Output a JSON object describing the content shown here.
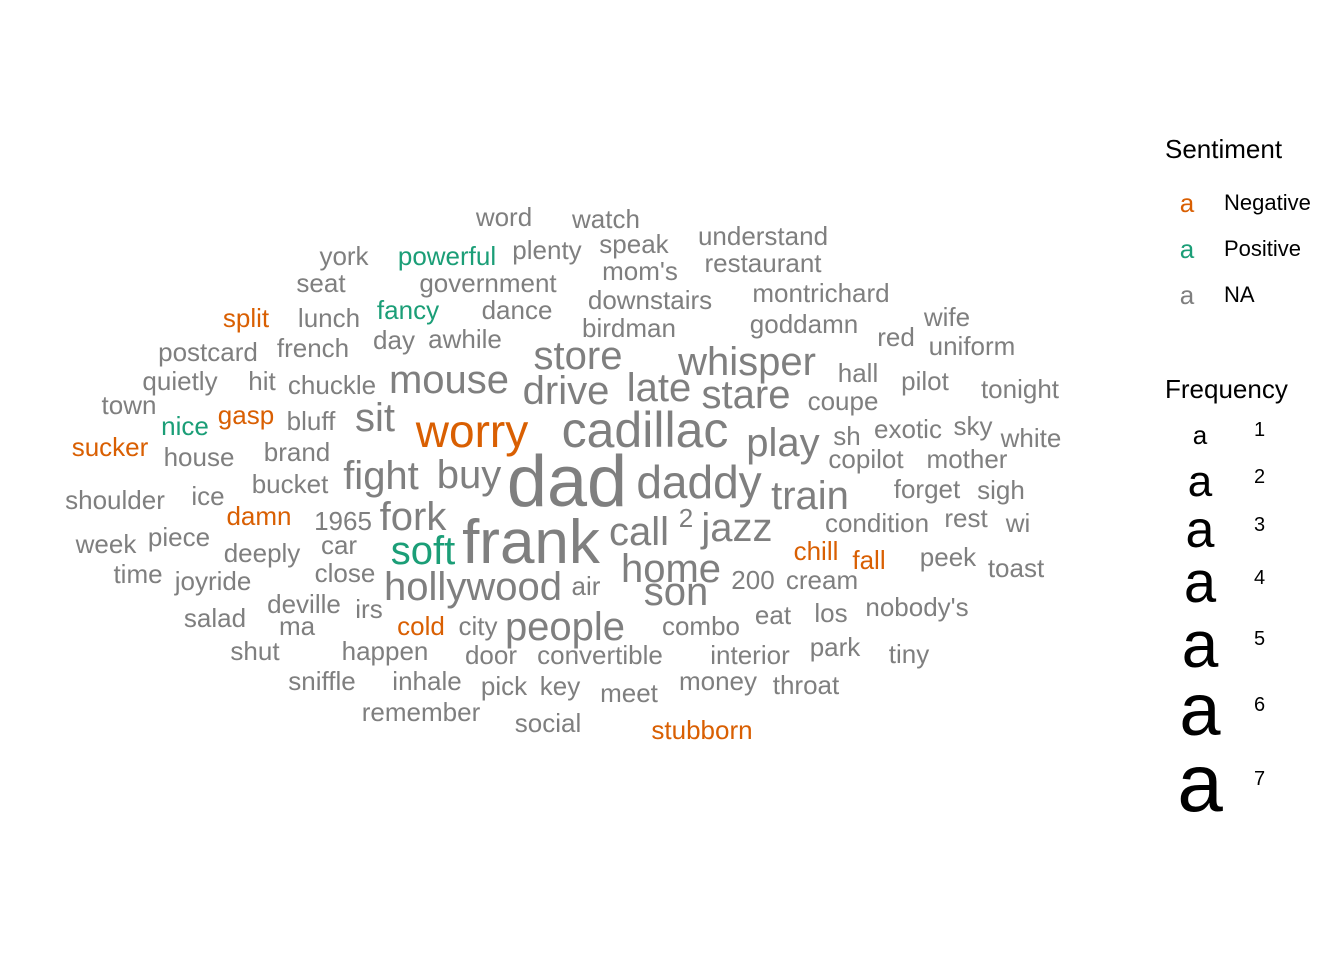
{
  "chart_data": {
    "type": "wordcloud",
    "colors": {
      "Negative": "#D95F02",
      "Positive": "#1B9E77",
      "NA": "#7F7F7F"
    },
    "words": [
      {
        "text": "dad",
        "freq": 7,
        "sentiment": "NA"
      },
      {
        "text": "frank",
        "freq": 6,
        "sentiment": "NA"
      },
      {
        "text": "cadillac",
        "freq": 5,
        "sentiment": "NA"
      },
      {
        "text": "worry",
        "freq": 4,
        "sentiment": "Negative"
      },
      {
        "text": "daddy",
        "freq": 4,
        "sentiment": "NA"
      },
      {
        "text": "store",
        "freq": 3,
        "sentiment": "NA"
      },
      {
        "text": "whisper",
        "freq": 3,
        "sentiment": "NA"
      },
      {
        "text": "mouse",
        "freq": 3,
        "sentiment": "NA"
      },
      {
        "text": "drive",
        "freq": 3,
        "sentiment": "NA"
      },
      {
        "text": "late",
        "freq": 3,
        "sentiment": "NA"
      },
      {
        "text": "stare",
        "freq": 3,
        "sentiment": "NA"
      },
      {
        "text": "sit",
        "freq": 3,
        "sentiment": "NA"
      },
      {
        "text": "play",
        "freq": 3,
        "sentiment": "NA"
      },
      {
        "text": "fight",
        "freq": 3,
        "sentiment": "NA"
      },
      {
        "text": "buy",
        "freq": 3,
        "sentiment": "NA"
      },
      {
        "text": "train",
        "freq": 3,
        "sentiment": "NA"
      },
      {
        "text": "fork",
        "freq": 3,
        "sentiment": "NA"
      },
      {
        "text": "call",
        "freq": 3,
        "sentiment": "NA"
      },
      {
        "text": "jazz",
        "freq": 3,
        "sentiment": "NA"
      },
      {
        "text": "soft",
        "freq": 3,
        "sentiment": "Positive"
      },
      {
        "text": "home",
        "freq": 3,
        "sentiment": "NA"
      },
      {
        "text": "son",
        "freq": 3,
        "sentiment": "NA"
      },
      {
        "text": "hollywood",
        "freq": 3,
        "sentiment": "NA"
      },
      {
        "text": "people",
        "freq": 3,
        "sentiment": "NA"
      },
      {
        "text": "word",
        "freq": 1,
        "sentiment": "NA"
      },
      {
        "text": "watch",
        "freq": 1,
        "sentiment": "NA"
      },
      {
        "text": "understand",
        "freq": 1,
        "sentiment": "NA"
      },
      {
        "text": "york",
        "freq": 1,
        "sentiment": "NA"
      },
      {
        "text": "powerful",
        "freq": 1,
        "sentiment": "Positive"
      },
      {
        "text": "plenty",
        "freq": 1,
        "sentiment": "NA"
      },
      {
        "text": "speak",
        "freq": 1,
        "sentiment": "NA"
      },
      {
        "text": "restaurant",
        "freq": 1,
        "sentiment": "NA"
      },
      {
        "text": "mom's",
        "freq": 1,
        "sentiment": "NA"
      },
      {
        "text": "seat",
        "freq": 1,
        "sentiment": "NA"
      },
      {
        "text": "government",
        "freq": 1,
        "sentiment": "NA"
      },
      {
        "text": "montrichard",
        "freq": 1,
        "sentiment": "NA"
      },
      {
        "text": "downstairs",
        "freq": 1,
        "sentiment": "NA"
      },
      {
        "text": "split",
        "freq": 1,
        "sentiment": "Negative"
      },
      {
        "text": "fancy",
        "freq": 1,
        "sentiment": "Positive"
      },
      {
        "text": "dance",
        "freq": 1,
        "sentiment": "NA"
      },
      {
        "text": "lunch",
        "freq": 1,
        "sentiment": "NA"
      },
      {
        "text": "wife",
        "freq": 1,
        "sentiment": "NA"
      },
      {
        "text": "goddamn",
        "freq": 1,
        "sentiment": "NA"
      },
      {
        "text": "birdman",
        "freq": 1,
        "sentiment": "NA"
      },
      {
        "text": "red",
        "freq": 1,
        "sentiment": "NA"
      },
      {
        "text": "day",
        "freq": 1,
        "sentiment": "NA"
      },
      {
        "text": "awhile",
        "freq": 1,
        "sentiment": "NA"
      },
      {
        "text": "uniform",
        "freq": 1,
        "sentiment": "NA"
      },
      {
        "text": "postcard",
        "freq": 1,
        "sentiment": "NA"
      },
      {
        "text": "french",
        "freq": 1,
        "sentiment": "NA"
      },
      {
        "text": "hall",
        "freq": 1,
        "sentiment": "NA"
      },
      {
        "text": "quietly",
        "freq": 1,
        "sentiment": "NA"
      },
      {
        "text": "hit",
        "freq": 1,
        "sentiment": "NA"
      },
      {
        "text": "chuckle",
        "freq": 1,
        "sentiment": "NA"
      },
      {
        "text": "pilot",
        "freq": 1,
        "sentiment": "NA"
      },
      {
        "text": "tonight",
        "freq": 1,
        "sentiment": "NA"
      },
      {
        "text": "coupe",
        "freq": 1,
        "sentiment": "NA"
      },
      {
        "text": "town",
        "freq": 1,
        "sentiment": "NA"
      },
      {
        "text": "gasp",
        "freq": 1,
        "sentiment": "Negative"
      },
      {
        "text": "bluff",
        "freq": 1,
        "sentiment": "NA"
      },
      {
        "text": "nice",
        "freq": 1,
        "sentiment": "Positive"
      },
      {
        "text": "exotic",
        "freq": 1,
        "sentiment": "NA"
      },
      {
        "text": "sky",
        "freq": 1,
        "sentiment": "NA"
      },
      {
        "text": "sh",
        "freq": 1,
        "sentiment": "NA"
      },
      {
        "text": "white",
        "freq": 1,
        "sentiment": "NA"
      },
      {
        "text": "sucker",
        "freq": 1,
        "sentiment": "Negative"
      },
      {
        "text": "brand",
        "freq": 1,
        "sentiment": "NA"
      },
      {
        "text": "house",
        "freq": 1,
        "sentiment": "NA"
      },
      {
        "text": "copilot",
        "freq": 1,
        "sentiment": "NA"
      },
      {
        "text": "mother",
        "freq": 1,
        "sentiment": "NA"
      },
      {
        "text": "bucket",
        "freq": 1,
        "sentiment": "NA"
      },
      {
        "text": "forget",
        "freq": 1,
        "sentiment": "NA"
      },
      {
        "text": "sigh",
        "freq": 1,
        "sentiment": "NA"
      },
      {
        "text": "shoulder",
        "freq": 1,
        "sentiment": "NA"
      },
      {
        "text": "ice",
        "freq": 1,
        "sentiment": "NA"
      },
      {
        "text": "damn",
        "freq": 1,
        "sentiment": "Negative"
      },
      {
        "text": "1965",
        "freq": 1,
        "sentiment": "NA"
      },
      {
        "text": "2",
        "freq": 1,
        "sentiment": "NA"
      },
      {
        "text": "condition",
        "freq": 1,
        "sentiment": "NA"
      },
      {
        "text": "rest",
        "freq": 1,
        "sentiment": "NA"
      },
      {
        "text": "wi",
        "freq": 1,
        "sentiment": "NA"
      },
      {
        "text": "piece",
        "freq": 1,
        "sentiment": "NA"
      },
      {
        "text": "week",
        "freq": 1,
        "sentiment": "NA"
      },
      {
        "text": "car",
        "freq": 1,
        "sentiment": "NA"
      },
      {
        "text": "deeply",
        "freq": 1,
        "sentiment": "NA"
      },
      {
        "text": "chill",
        "freq": 1,
        "sentiment": "Negative"
      },
      {
        "text": "fall",
        "freq": 1,
        "sentiment": "Negative"
      },
      {
        "text": "peek",
        "freq": 1,
        "sentiment": "NA"
      },
      {
        "text": "toast",
        "freq": 1,
        "sentiment": "NA"
      },
      {
        "text": "time",
        "freq": 1,
        "sentiment": "NA"
      },
      {
        "text": "close",
        "freq": 1,
        "sentiment": "NA"
      },
      {
        "text": "joyride",
        "freq": 1,
        "sentiment": "NA"
      },
      {
        "text": "200",
        "freq": 1,
        "sentiment": "NA"
      },
      {
        "text": "cream",
        "freq": 1,
        "sentiment": "NA"
      },
      {
        "text": "air",
        "freq": 1,
        "sentiment": "NA"
      },
      {
        "text": "deville",
        "freq": 1,
        "sentiment": "NA"
      },
      {
        "text": "irs",
        "freq": 1,
        "sentiment": "NA"
      },
      {
        "text": "nobody's",
        "freq": 1,
        "sentiment": "NA"
      },
      {
        "text": "eat",
        "freq": 1,
        "sentiment": "NA"
      },
      {
        "text": "los",
        "freq": 1,
        "sentiment": "NA"
      },
      {
        "text": "salad",
        "freq": 1,
        "sentiment": "NA"
      },
      {
        "text": "ma",
        "freq": 1,
        "sentiment": "NA"
      },
      {
        "text": "cold",
        "freq": 1,
        "sentiment": "Negative"
      },
      {
        "text": "city",
        "freq": 1,
        "sentiment": "NA"
      },
      {
        "text": "combo",
        "freq": 1,
        "sentiment": "NA"
      },
      {
        "text": "park",
        "freq": 1,
        "sentiment": "NA"
      },
      {
        "text": "shut",
        "freq": 1,
        "sentiment": "NA"
      },
      {
        "text": "happen",
        "freq": 1,
        "sentiment": "NA"
      },
      {
        "text": "door",
        "freq": 1,
        "sentiment": "NA"
      },
      {
        "text": "convertible",
        "freq": 1,
        "sentiment": "NA"
      },
      {
        "text": "interior",
        "freq": 1,
        "sentiment": "NA"
      },
      {
        "text": "tiny",
        "freq": 1,
        "sentiment": "NA"
      },
      {
        "text": "sniffle",
        "freq": 1,
        "sentiment": "NA"
      },
      {
        "text": "inhale",
        "freq": 1,
        "sentiment": "NA"
      },
      {
        "text": "pick",
        "freq": 1,
        "sentiment": "NA"
      },
      {
        "text": "key",
        "freq": 1,
        "sentiment": "NA"
      },
      {
        "text": "money",
        "freq": 1,
        "sentiment": "NA"
      },
      {
        "text": "throat",
        "freq": 1,
        "sentiment": "NA"
      },
      {
        "text": "meet",
        "freq": 1,
        "sentiment": "NA"
      },
      {
        "text": "remember",
        "freq": 1,
        "sentiment": "NA"
      },
      {
        "text": "social",
        "freq": 1,
        "sentiment": "NA"
      },
      {
        "text": "stubborn",
        "freq": 1,
        "sentiment": "Negative"
      }
    ],
    "legend": {
      "sentiment": {
        "title": "Sentiment",
        "key_glyph": "a",
        "items": [
          {
            "label": "Negative",
            "color": "#D95F02"
          },
          {
            "label": "Positive",
            "color": "#1B9E77"
          },
          {
            "label": "NA",
            "color": "#7F7F7F"
          }
        ]
      },
      "frequency": {
        "title": "Frequency",
        "key_glyph": "a",
        "items": [
          {
            "label": "1",
            "value": 1
          },
          {
            "label": "2",
            "value": 2
          },
          {
            "label": "3",
            "value": 3
          },
          {
            "label": "4",
            "value": 4
          },
          {
            "label": "5",
            "value": 5
          },
          {
            "label": "6",
            "value": 6
          },
          {
            "label": "7",
            "value": 7
          }
        ]
      }
    }
  }
}
